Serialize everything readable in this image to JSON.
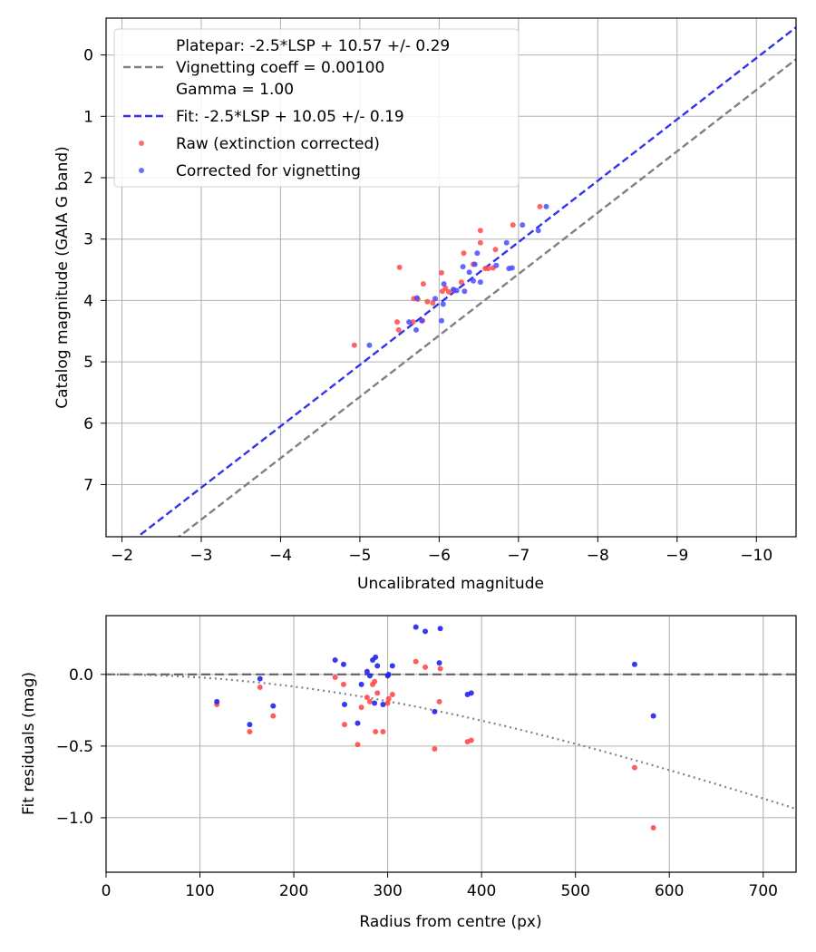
{
  "chart_data": [
    {
      "type": "scatter",
      "title": "",
      "xlabel": "Uncalibrated magnitude",
      "ylabel": "Catalog magnitude (GAIA G band)",
      "xlim": [
        -1.8,
        -10.5
      ],
      "ylim": [
        7.85,
        -0.6
      ],
      "xticks": [
        -2,
        -3,
        -4,
        -5,
        -6,
        -7,
        -8,
        -9,
        -10
      ],
      "xtick_labels": [
        "−2",
        "−3",
        "−4",
        "−5",
        "−6",
        "−7",
        "−8",
        "−9",
        "−10"
      ],
      "yticks": [
        0,
        1,
        2,
        3,
        4,
        5,
        6,
        7
      ],
      "ytick_labels": [
        "0",
        "1",
        "2",
        "3",
        "4",
        "5",
        "6",
        "7"
      ],
      "grid": true,
      "legend_position": "top-left",
      "lines": [
        {
          "name": "platepar",
          "label": "Platepar: -2.5*LSP + 10.57 +/- 0.29\nVignetting coeff = 0.00100\nGamma = 1.00",
          "color": "#808080",
          "style": "dashed",
          "offset": 10.57
        },
        {
          "name": "fit",
          "label": "Fit: -2.5*LSP + 10.05 +/- 0.19",
          "color": "#3333ee",
          "style": "dashed",
          "offset": 10.05
        }
      ],
      "series": [
        {
          "name": "raw",
          "label": "Raw (extinction corrected)",
          "color": "#ff4a4a",
          "points": [
            [
              -4.93,
              4.73
            ],
            [
              -5.47,
              4.35
            ],
            [
              -5.49,
              4.48
            ],
            [
              -5.5,
              3.46
            ],
            [
              -5.67,
              4.35
            ],
            [
              -5.68,
              3.97
            ],
            [
              -5.73,
              3.98
            ],
            [
              -5.79,
              4.33
            ],
            [
              -5.8,
              3.73
            ],
            [
              -5.85,
              4.02
            ],
            [
              -5.92,
              4.04
            ],
            [
              -6.03,
              3.55
            ],
            [
              -6.04,
              3.85
            ],
            [
              -6.08,
              3.8
            ],
            [
              -6.12,
              3.86
            ],
            [
              -6.18,
              3.83
            ],
            [
              -6.28,
              3.7
            ],
            [
              -6.31,
              3.23
            ],
            [
              -6.43,
              3.41
            ],
            [
              -6.52,
              2.86
            ],
            [
              -6.52,
              3.06
            ],
            [
              -6.58,
              3.48
            ],
            [
              -6.62,
              3.48
            ],
            [
              -6.68,
              3.47
            ],
            [
              -6.71,
              3.17
            ],
            [
              -6.93,
              2.77
            ],
            [
              -7.27,
              2.47
            ]
          ]
        },
        {
          "name": "corrected",
          "label": "Corrected for vignetting",
          "color": "#4a4aff",
          "points": [
            [
              -5.12,
              4.73
            ],
            [
              -5.62,
              4.35
            ],
            [
              -5.71,
              4.48
            ],
            [
              -5.72,
              3.96
            ],
            [
              -5.78,
              4.33
            ],
            [
              -5.95,
              3.97
            ],
            [
              -6.03,
              4.33
            ],
            [
              -6.05,
              4.06
            ],
            [
              -6.06,
              3.73
            ],
            [
              -6.18,
              3.82
            ],
            [
              -6.22,
              3.84
            ],
            [
              -6.3,
              3.45
            ],
            [
              -6.32,
              3.85
            ],
            [
              -6.38,
              3.54
            ],
            [
              -6.43,
              3.68
            ],
            [
              -6.45,
              3.41
            ],
            [
              -6.48,
              3.23
            ],
            [
              -6.52,
              3.7
            ],
            [
              -6.72,
              3.43
            ],
            [
              -6.85,
              3.06
            ],
            [
              -6.88,
              3.48
            ],
            [
              -6.92,
              3.47
            ],
            [
              -7.05,
              2.77
            ],
            [
              -7.25,
              2.86
            ],
            [
              -7.35,
              2.47
            ]
          ]
        }
      ]
    },
    {
      "type": "scatter",
      "title": "",
      "xlabel": "Radius from centre (px)",
      "ylabel": "Fit residuals (mag)",
      "xlim": [
        0,
        735
      ],
      "ylim": [
        -1.38,
        0.41
      ],
      "xticks": [
        0,
        100,
        200,
        300,
        400,
        500,
        600,
        700
      ],
      "xtick_labels": [
        "0",
        "100",
        "200",
        "300",
        "400",
        "500",
        "600",
        "700"
      ],
      "yticks": [
        0.0,
        -0.5,
        -1.0
      ],
      "ytick_labels": [
        "0.0",
        "−0.5",
        "−1.0"
      ],
      "grid": true,
      "zero_line": {
        "y": 0,
        "color": "#606060",
        "style": "dashed"
      },
      "vignetting_curve": {
        "coeff": 0.001,
        "color": "#808080",
        "style": "dotted"
      },
      "series": [
        {
          "name": "raw",
          "color": "#ff4a4a",
          "points": [
            [
              118,
              -0.21
            ],
            [
              153,
              -0.4
            ],
            [
              164,
              -0.09
            ],
            [
              178,
              -0.29
            ],
            [
              244,
              -0.02
            ],
            [
              253,
              -0.07
            ],
            [
              254,
              -0.35
            ],
            [
              268,
              -0.49
            ],
            [
              272,
              -0.23
            ],
            [
              278,
              -0.16
            ],
            [
              281,
              -0.19
            ],
            [
              284,
              -0.07
            ],
            [
              286,
              -0.05
            ],
            [
              287,
              -0.4
            ],
            [
              289,
              -0.13
            ],
            [
              295,
              -0.4
            ],
            [
              300,
              -0.2
            ],
            [
              301,
              -0.17
            ],
            [
              305,
              -0.14
            ],
            [
              330,
              0.09
            ],
            [
              340,
              0.05
            ],
            [
              350,
              -0.52
            ],
            [
              355,
              -0.19
            ],
            [
              356,
              0.04
            ],
            [
              385,
              -0.47
            ],
            [
              389,
              -0.46
            ],
            [
              563,
              -0.65
            ],
            [
              583,
              -1.07
            ]
          ]
        },
        {
          "name": "corrected",
          "color": "#2222ee",
          "points": [
            [
              118,
              -0.19
            ],
            [
              153,
              -0.35
            ],
            [
              164,
              -0.03
            ],
            [
              178,
              -0.22
            ],
            [
              244,
              0.1
            ],
            [
              253,
              0.07
            ],
            [
              254,
              -0.21
            ],
            [
              268,
              -0.34
            ],
            [
              272,
              -0.07
            ],
            [
              278,
              0.02
            ],
            [
              281,
              -0.01
            ],
            [
              284,
              0.1
            ],
            [
              286,
              -0.2
            ],
            [
              287,
              0.12
            ],
            [
              289,
              0.06
            ],
            [
              295,
              -0.21
            ],
            [
              300,
              -0.01
            ],
            [
              301,
              0.0
            ],
            [
              305,
              0.06
            ],
            [
              330,
              0.33
            ],
            [
              340,
              0.3
            ],
            [
              350,
              -0.26
            ],
            [
              355,
              0.08
            ],
            [
              356,
              0.32
            ],
            [
              385,
              -0.14
            ],
            [
              389,
              -0.13
            ],
            [
              563,
              0.07
            ],
            [
              583,
              -0.29
            ]
          ]
        }
      ]
    }
  ]
}
